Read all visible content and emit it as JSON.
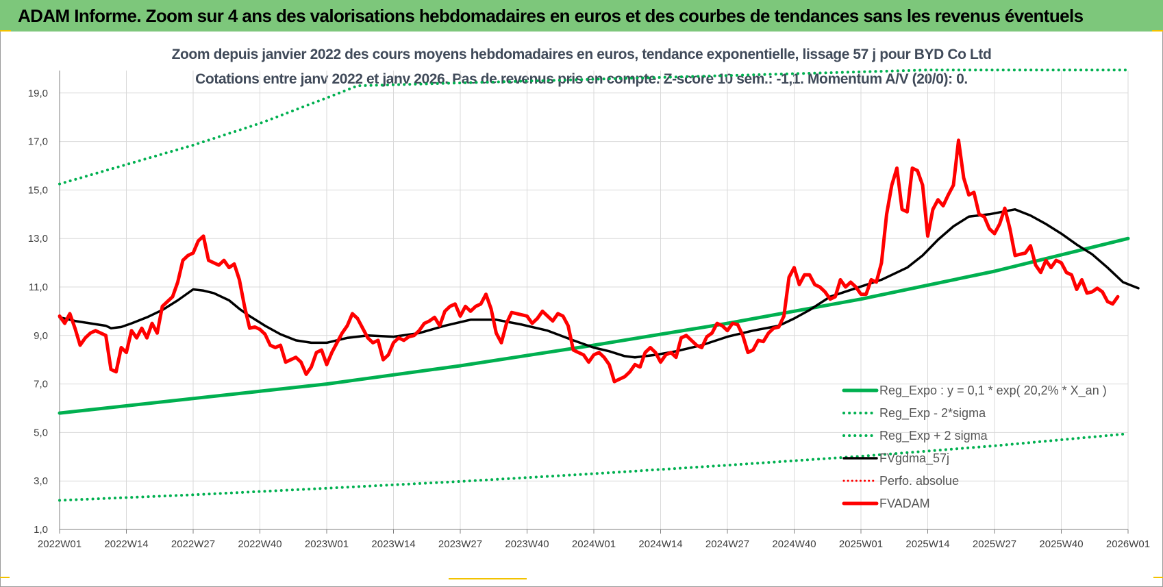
{
  "banner": {
    "title": "ADAM Informe. Zoom sur 4 ans des valorisations hebdomadaires en euros et des courbes de tendances sans les revenus éventuels"
  },
  "colors": {
    "banner_bg": "#7dc77b",
    "trend": "#00b050",
    "price": "#ff0000",
    "smooth": "#000000",
    "perf": "#ff0000"
  },
  "chart_data": {
    "type": "line",
    "title": "Zoom depuis janvier 2022 des cours moyens hebdomadaires en euros, tendance exponentielle, lissage 57 j pour BYD Co Ltd",
    "subtitle": "Cotations entre janv 2022 et janv 2026. Pas de revenus pris en compte. Z-score 10 sem.: -1,1. Momentum A/V (20/0): 0.",
    "xlabel": "",
    "ylabel": "",
    "ylim": [
      1,
      20
    ],
    "y_ticks": [
      "1,0",
      "3,0",
      "5,0",
      "7,0",
      "9,0",
      "11,0",
      "13,0",
      "15,0",
      "17,0",
      "19,0"
    ],
    "x_ticks": [
      "2022W01",
      "2022W14",
      "2022W27",
      "2022W40",
      "2023W01",
      "2023W14",
      "2023W27",
      "2023W40",
      "2024W01",
      "2024W14",
      "2024W27",
      "2024W40",
      "2025W01",
      "2025W14",
      "2025W27",
      "2025W40",
      "2026W01"
    ],
    "grid": true,
    "legend_position": "bottom-right",
    "legend": [
      "Reg_Expo : y = 0,1 * exp( 20,2% *  X_an )",
      "Reg_Exp - 2*sigma",
      "Reg_Exp + 2 sigma",
      "FVgdma_57j",
      "Perfo. absolue",
      "FVADAM"
    ],
    "series": [
      {
        "name": "Reg_Expo : y = 0,1 * exp( 20,2% *  X_an )",
        "style": "solid-thick",
        "points": [
          [
            0,
            5.8
          ],
          [
            26,
            6.4
          ],
          [
            52,
            7.0
          ],
          [
            78,
            7.75
          ],
          [
            104,
            8.6
          ],
          [
            130,
            9.5
          ],
          [
            156,
            10.5
          ],
          [
            182,
            11.65
          ],
          [
            208,
            13.0
          ]
        ]
      },
      {
        "name": "Reg_Exp - 2*sigma",
        "style": "dotted",
        "points": [
          [
            0,
            2.2
          ],
          [
            26,
            2.43
          ],
          [
            52,
            2.7
          ],
          [
            78,
            2.98
          ],
          [
            104,
            3.3
          ],
          [
            130,
            3.65
          ],
          [
            156,
            4.02
          ],
          [
            182,
            4.45
          ],
          [
            208,
            4.95
          ]
        ]
      },
      {
        "name": "Reg_Exp + 2 sigma",
        "style": "dotted",
        "points": [
          [
            0,
            15.25
          ],
          [
            13,
            16.05
          ],
          [
            26,
            16.85
          ],
          [
            39,
            17.75
          ],
          [
            52,
            18.8
          ],
          [
            58,
            19.3
          ],
          [
            169,
            19.95
          ],
          [
            208,
            19.95
          ]
        ]
      },
      {
        "name": "FVgdma_57j",
        "style": "solid-medium",
        "points": [
          [
            0,
            9.75
          ],
          [
            3,
            9.6
          ],
          [
            6,
            9.5
          ],
          [
            9,
            9.4
          ],
          [
            10,
            9.3
          ],
          [
            12,
            9.35
          ],
          [
            14,
            9.5
          ],
          [
            17,
            9.75
          ],
          [
            20,
            10.05
          ],
          [
            23,
            10.45
          ],
          [
            26,
            10.9
          ],
          [
            28,
            10.85
          ],
          [
            30,
            10.75
          ],
          [
            33,
            10.45
          ],
          [
            35,
            10.1
          ],
          [
            37,
            9.8
          ],
          [
            40,
            9.4
          ],
          [
            43,
            9.05
          ],
          [
            46,
            8.8
          ],
          [
            49,
            8.7
          ],
          [
            52,
            8.7
          ],
          [
            56,
            8.9
          ],
          [
            60,
            9.0
          ],
          [
            65,
            8.95
          ],
          [
            70,
            9.1
          ],
          [
            75,
            9.4
          ],
          [
            80,
            9.65
          ],
          [
            85,
            9.65
          ],
          [
            90,
            9.45
          ],
          [
            95,
            9.2
          ],
          [
            100,
            8.8
          ],
          [
            104,
            8.5
          ],
          [
            107,
            8.35
          ],
          [
            110,
            8.15
          ],
          [
            112,
            8.1
          ],
          [
            116,
            8.2
          ],
          [
            120,
            8.35
          ],
          [
            125,
            8.6
          ],
          [
            130,
            8.95
          ],
          [
            135,
            9.2
          ],
          [
            140,
            9.4
          ],
          [
            143,
            9.7
          ],
          [
            146,
            10.05
          ],
          [
            150,
            10.6
          ],
          [
            155,
            10.95
          ],
          [
            160,
            11.3
          ],
          [
            165,
            11.8
          ],
          [
            168,
            12.3
          ],
          [
            171,
            12.95
          ],
          [
            174,
            13.5
          ],
          [
            177,
            13.9
          ],
          [
            181,
            14.0
          ],
          [
            186,
            14.2
          ],
          [
            189,
            13.95
          ],
          [
            192,
            13.6
          ],
          [
            195,
            13.2
          ],
          [
            198,
            12.75
          ],
          [
            201,
            12.35
          ],
          [
            204,
            11.8
          ],
          [
            207,
            11.2
          ],
          [
            210,
            10.95
          ]
        ]
      },
      {
        "name": "Perfo. absolue",
        "style": "dotted",
        "points": []
      },
      {
        "name": "FVADAM",
        "style": "solid-thick",
        "points": [
          [
            0,
            9.8
          ],
          [
            1,
            9.5
          ],
          [
            2,
            9.9
          ],
          [
            3,
            9.3
          ],
          [
            4,
            8.6
          ],
          [
            5,
            8.9
          ],
          [
            6,
            9.1
          ],
          [
            7,
            9.2
          ],
          [
            8,
            9.1
          ],
          [
            9,
            9.0
          ],
          [
            10,
            7.6
          ],
          [
            11,
            7.5
          ],
          [
            12,
            8.5
          ],
          [
            13,
            8.3
          ],
          [
            14,
            9.2
          ],
          [
            15,
            8.9
          ],
          [
            16,
            9.3
          ],
          [
            17,
            8.9
          ],
          [
            18,
            9.5
          ],
          [
            19,
            9.1
          ],
          [
            20,
            10.2
          ],
          [
            21,
            10.4
          ],
          [
            22,
            10.6
          ],
          [
            23,
            11.2
          ],
          [
            24,
            12.1
          ],
          [
            25,
            12.3
          ],
          [
            26,
            12.4
          ],
          [
            27,
            12.9
          ],
          [
            28,
            13.1
          ],
          [
            29,
            12.1
          ],
          [
            30,
            12.0
          ],
          [
            31,
            11.9
          ],
          [
            32,
            12.1
          ],
          [
            33,
            11.8
          ],
          [
            34,
            11.95
          ],
          [
            35,
            11.3
          ],
          [
            36,
            10.2
          ],
          [
            37,
            9.3
          ],
          [
            38,
            9.35
          ],
          [
            39,
            9.25
          ],
          [
            40,
            9.05
          ],
          [
            41,
            8.6
          ],
          [
            42,
            8.5
          ],
          [
            43,
            8.6
          ],
          [
            44,
            7.9
          ],
          [
            45,
            8.0
          ],
          [
            46,
            8.1
          ],
          [
            47,
            7.9
          ],
          [
            48,
            7.4
          ],
          [
            49,
            7.7
          ],
          [
            50,
            8.3
          ],
          [
            51,
            8.4
          ],
          [
            52,
            7.8
          ],
          [
            53,
            8.3
          ],
          [
            54,
            8.7
          ],
          [
            55,
            9.1
          ],
          [
            56,
            9.4
          ],
          [
            57,
            9.9
          ],
          [
            58,
            9.7
          ],
          [
            59,
            9.3
          ],
          [
            60,
            8.9
          ],
          [
            61,
            8.7
          ],
          [
            62,
            8.8
          ],
          [
            63,
            8.0
          ],
          [
            64,
            8.2
          ],
          [
            65,
            8.7
          ],
          [
            66,
            8.9
          ],
          [
            67,
            8.8
          ],
          [
            68,
            8.95
          ],
          [
            69,
            9.0
          ],
          [
            70,
            9.2
          ],
          [
            71,
            9.5
          ],
          [
            72,
            9.6
          ],
          [
            73,
            9.75
          ],
          [
            74,
            9.4
          ],
          [
            75,
            10.0
          ],
          [
            76,
            10.2
          ],
          [
            77,
            10.3
          ],
          [
            78,
            9.8
          ],
          [
            79,
            10.2
          ],
          [
            80,
            10.0
          ],
          [
            81,
            10.2
          ],
          [
            82,
            10.3
          ],
          [
            83,
            10.7
          ],
          [
            84,
            10.1
          ],
          [
            85,
            9.1
          ],
          [
            86,
            8.7
          ],
          [
            87,
            9.5
          ],
          [
            88,
            9.95
          ],
          [
            89,
            9.9
          ],
          [
            90,
            9.85
          ],
          [
            91,
            9.8
          ],
          [
            92,
            9.5
          ],
          [
            93,
            9.7
          ],
          [
            94,
            10.0
          ],
          [
            95,
            9.8
          ],
          [
            96,
            9.6
          ],
          [
            97,
            9.9
          ],
          [
            98,
            9.8
          ],
          [
            99,
            9.4
          ],
          [
            100,
            8.4
          ],
          [
            101,
            8.3
          ],
          [
            102,
            8.2
          ],
          [
            103,
            7.9
          ],
          [
            104,
            8.2
          ],
          [
            105,
            8.3
          ],
          [
            106,
            8.1
          ],
          [
            107,
            7.8
          ],
          [
            108,
            7.1
          ],
          [
            109,
            7.2
          ],
          [
            110,
            7.3
          ],
          [
            111,
            7.5
          ],
          [
            112,
            7.8
          ],
          [
            113,
            7.7
          ],
          [
            114,
            8.3
          ],
          [
            115,
            8.5
          ],
          [
            116,
            8.3
          ],
          [
            117,
            7.9
          ],
          [
            118,
            8.2
          ],
          [
            119,
            8.3
          ],
          [
            120,
            8.1
          ],
          [
            121,
            8.9
          ],
          [
            122,
            9.0
          ],
          [
            123,
            8.8
          ],
          [
            124,
            8.6
          ],
          [
            125,
            8.5
          ],
          [
            126,
            8.95
          ],
          [
            127,
            9.1
          ],
          [
            128,
            9.5
          ],
          [
            129,
            9.4
          ],
          [
            130,
            9.2
          ],
          [
            131,
            9.5
          ],
          [
            132,
            9.45
          ],
          [
            133,
            9.0
          ],
          [
            134,
            8.3
          ],
          [
            135,
            8.4
          ],
          [
            136,
            8.8
          ],
          [
            137,
            8.75
          ],
          [
            138,
            9.1
          ],
          [
            139,
            9.3
          ],
          [
            140,
            9.35
          ],
          [
            141,
            9.8
          ],
          [
            142,
            11.4
          ],
          [
            143,
            11.8
          ],
          [
            144,
            11.1
          ],
          [
            145,
            11.5
          ],
          [
            146,
            11.5
          ],
          [
            147,
            11.1
          ],
          [
            148,
            11.0
          ],
          [
            149,
            10.8
          ],
          [
            150,
            10.5
          ],
          [
            151,
            10.6
          ],
          [
            152,
            11.3
          ],
          [
            153,
            11.0
          ],
          [
            154,
            11.2
          ],
          [
            155,
            11.0
          ],
          [
            156,
            10.7
          ],
          [
            157,
            10.7
          ],
          [
            158,
            11.3
          ],
          [
            159,
            11.2
          ],
          [
            160,
            12.0
          ],
          [
            161,
            14.0
          ],
          [
            162,
            15.2
          ],
          [
            163,
            15.9
          ],
          [
            164,
            14.2
          ],
          [
            165,
            14.1
          ],
          [
            166,
            15.9
          ],
          [
            167,
            15.8
          ],
          [
            168,
            15.2
          ],
          [
            169,
            13.1
          ],
          [
            170,
            14.2
          ],
          [
            171,
            14.6
          ],
          [
            172,
            14.35
          ],
          [
            173,
            14.8
          ],
          [
            174,
            15.2
          ],
          [
            175,
            17.05
          ],
          [
            176,
            15.5
          ],
          [
            177,
            14.8
          ],
          [
            178,
            14.9
          ],
          [
            179,
            14.0
          ],
          [
            180,
            13.9
          ],
          [
            181,
            13.4
          ],
          [
            182,
            13.2
          ],
          [
            183,
            13.6
          ],
          [
            184,
            14.25
          ],
          [
            185,
            13.4
          ],
          [
            186,
            12.3
          ],
          [
            187,
            12.35
          ],
          [
            188,
            12.4
          ],
          [
            189,
            12.7
          ],
          [
            190,
            11.9
          ],
          [
            191,
            11.6
          ],
          [
            192,
            12.1
          ],
          [
            193,
            11.8
          ],
          [
            194,
            12.1
          ],
          [
            195,
            12.0
          ],
          [
            196,
            11.6
          ],
          [
            197,
            11.5
          ],
          [
            198,
            10.9
          ],
          [
            199,
            11.3
          ],
          [
            200,
            10.75
          ],
          [
            201,
            10.8
          ],
          [
            202,
            10.95
          ],
          [
            203,
            10.8
          ],
          [
            204,
            10.4
          ],
          [
            205,
            10.3
          ],
          [
            206,
            10.6
          ]
        ]
      }
    ]
  }
}
